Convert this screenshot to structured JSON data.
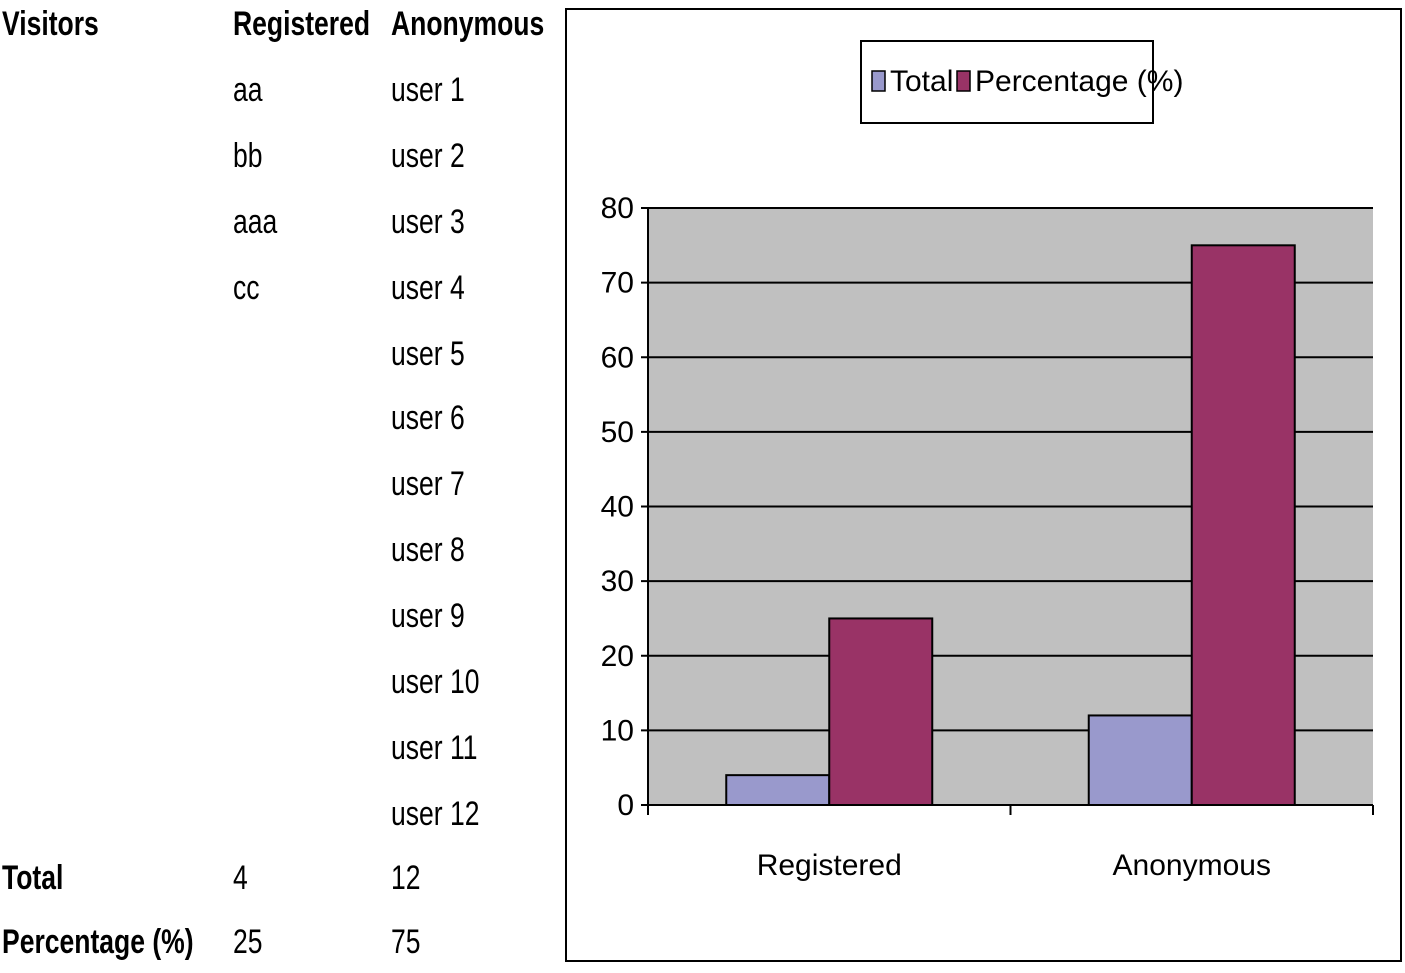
{
  "table": {
    "headers": [
      "Visitors",
      "Registered",
      "Anonymous"
    ],
    "registered_users": [
      "aa",
      "bb",
      "aaa",
      "cc"
    ],
    "anonymous_users": [
      "user 1",
      "user 2",
      "user 3",
      "user 4",
      "user 5",
      "user 6",
      "user 7",
      "user 8",
      "user 9",
      "user 10",
      "user 11",
      "user 12"
    ],
    "total_row": {
      "label": "Total",
      "registered": "4",
      "anonymous": "12"
    },
    "percentage_row": {
      "label": "Percentage (%)",
      "registered": "25",
      "anonymous": "75"
    }
  },
  "colors": {
    "total": "#9999cc",
    "percentage": "#993366",
    "plot_bg": "#c0c0c0",
    "gridline": "#000000"
  },
  "chart_data": {
    "type": "bar",
    "categories": [
      "Registered",
      "Anonymous"
    ],
    "series": [
      {
        "name": "Total",
        "values": [
          4,
          12
        ]
      },
      {
        "name": "Percentage (%)",
        "values": [
          25,
          75
        ]
      }
    ],
    "ylim": [
      0,
      80
    ],
    "yticks": [
      0,
      10,
      20,
      30,
      40,
      50,
      60,
      70,
      80
    ],
    "grid": true,
    "legend_position": "top"
  }
}
